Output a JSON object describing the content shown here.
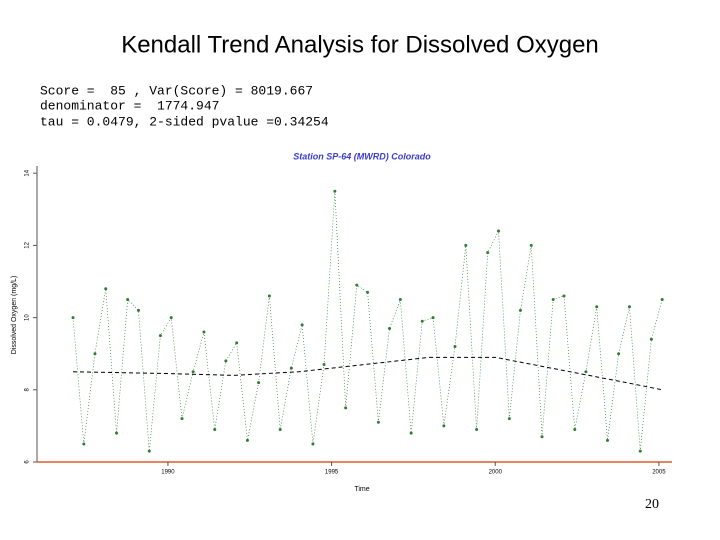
{
  "slide": {
    "title": "Kendall Trend Analysis for Dissolved Oxygen",
    "stats": [
      "Score =  85 , Var(Score) = 8019.667",
      "denominator =  1774.947",
      "tau = 0.0479, 2-sided pvalue =0.34254"
    ],
    "page_number": "20"
  },
  "chart_data": {
    "type": "line",
    "title": "Station SP-64 (MWRD) Colorado",
    "x_label": "Time",
    "y_label": "Dissolved Oxygen (mg/L)",
    "xlim": [
      1986,
      2005.4
    ],
    "xticks": [
      1990,
      1995,
      2000,
      2005
    ],
    "ylim": [
      6,
      14.2
    ],
    "yticks": [
      6,
      8,
      10,
      12,
      14
    ],
    "series": [
      {
        "color": "#2e7d32",
        "x": [
          1987.1,
          1987.43,
          1987.77,
          1988.1,
          1988.43,
          1988.77,
          1989.1,
          1989.43,
          1989.77,
          1990.1,
          1990.43,
          1990.77,
          1991.1,
          1991.43,
          1991.77,
          1992.1,
          1992.43,
          1992.77,
          1993.1,
          1993.43,
          1993.77,
          1994.1,
          1994.43,
          1994.77,
          1995.1,
          1995.43,
          1995.77,
          1996.1,
          1996.43,
          1996.77,
          1997.1,
          1997.43,
          1997.77,
          1998.1,
          1998.43,
          1998.77,
          1999.1,
          1999.43,
          1999.77,
          2000.1,
          2000.43,
          2000.77,
          2001.1,
          2001.43,
          2001.77,
          2002.1,
          2002.43,
          2002.77,
          2003.1,
          2003.43,
          2003.77,
          2004.1,
          2004.43,
          2004.77,
          2005.1
        ],
        "values": [
          10.0,
          6.5,
          9.0,
          10.8,
          6.8,
          10.5,
          10.2,
          6.3,
          9.5,
          10.0,
          7.2,
          8.5,
          9.6,
          6.9,
          8.8,
          9.3,
          6.6,
          8.2,
          10.6,
          6.9,
          8.6,
          9.8,
          6.5,
          8.7,
          13.5,
          7.5,
          10.9,
          10.7,
          7.1,
          9.7,
          10.5,
          6.8,
          9.9,
          10.0,
          7.0,
          9.2,
          12.0,
          6.9,
          11.8,
          12.4,
          7.2,
          10.2,
          12.0,
          6.7,
          10.5,
          10.6,
          6.9,
          8.5,
          10.3,
          6.6,
          9.0,
          10.3,
          6.3,
          9.4,
          10.5
        ]
      },
      {
        "color": "#000000",
        "dashed": true,
        "x": [
          1987.1,
          1990,
          1992,
          1994,
          1996,
          1998,
          2000,
          2002,
          2004,
          2005.1
        ],
        "values": [
          8.5,
          8.45,
          8.4,
          8.5,
          8.7,
          8.9,
          8.9,
          8.55,
          8.2,
          8.0
        ]
      }
    ]
  }
}
